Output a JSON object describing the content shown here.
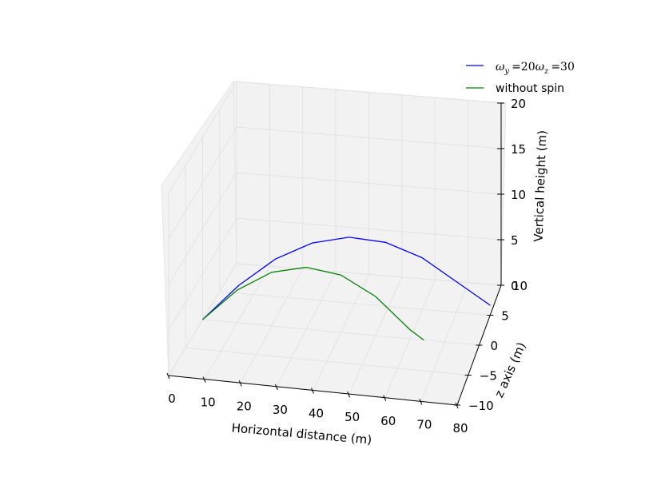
{
  "chart_data": {
    "type": "line",
    "projection": "3d",
    "title": "",
    "xlabel": "Horizontal distance (m)",
    "ylabel": "z axis (m)",
    "zlabel": "Vertical height (m)",
    "xlim": [
      0,
      80
    ],
    "ylim": [
      -10,
      10
    ],
    "zlim": [
      0,
      20
    ],
    "xticks": [
      "0",
      "10",
      "20",
      "30",
      "40",
      "50",
      "60",
      "70",
      "80"
    ],
    "yticks": [
      "−10",
      "−5",
      "0",
      "5",
      "10"
    ],
    "zticks": [
      "0",
      "5",
      "10",
      "15",
      "20"
    ],
    "grid": true,
    "legend_placement": "top-right",
    "series": [
      {
        "name": "ωy =20ωz =30",
        "name_parts": {
          "omega": "ω",
          "sub_y": "y",
          "eq1": "=20",
          "sub_z": "z",
          "eq2": "=30"
        },
        "color": "#0000ff",
        "x": [
          0,
          10,
          20,
          30,
          40,
          50,
          60,
          70,
          79
        ],
        "y": [
          0,
          0.5,
          1.2,
          2.0,
          2.9,
          3.8,
          4.8,
          5.8,
          6.6
        ],
        "z": [
          0,
          3.8,
          6.6,
          8.2,
          8.6,
          7.8,
          5.8,
          2.7,
          0
        ]
      },
      {
        "name": "without spin",
        "color": "#008000",
        "x": [
          0,
          10,
          20,
          30,
          40,
          50,
          60,
          64
        ],
        "y": [
          0,
          0,
          0,
          0,
          0,
          0,
          0,
          0
        ],
        "z": [
          0,
          3.6,
          5.9,
          6.8,
          6.3,
          4.3,
          1.0,
          0
        ]
      }
    ]
  }
}
